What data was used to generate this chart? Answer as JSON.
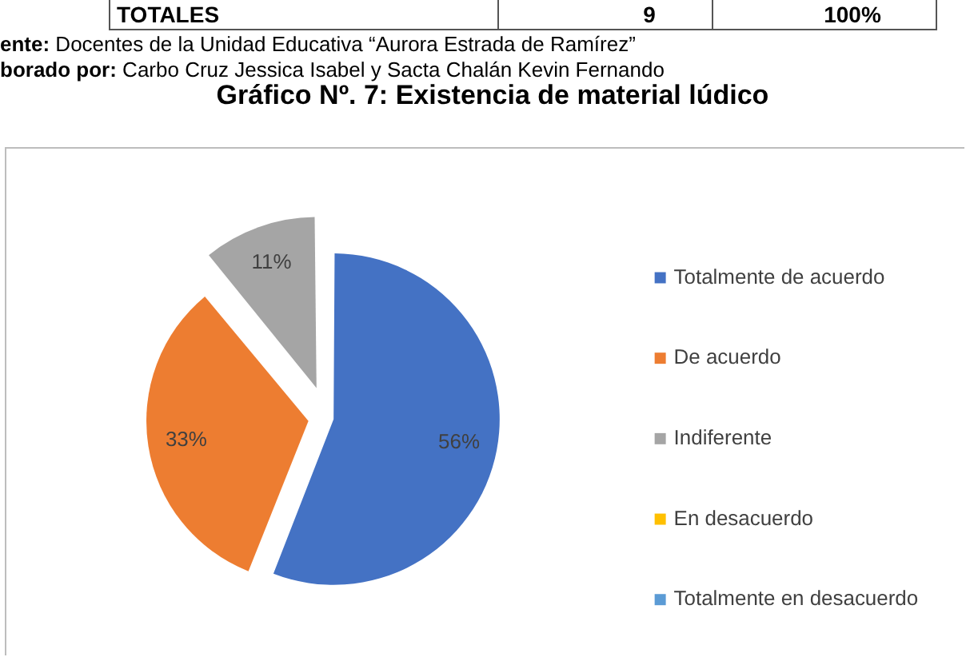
{
  "chart_data": {
    "type": "pie",
    "title": "Gráfico Nº. 7: Existencia de material lúdico",
    "categories": [
      "Totalmente de acuerdo",
      "De acuerdo",
      "Indiferente",
      "En desacuerdo",
      "Totalmente en desacuerdo"
    ],
    "values": [
      56,
      33,
      11,
      0,
      0
    ],
    "colors": [
      "#4472c4",
      "#ed7d31",
      "#a5a5a5",
      "#ffc000",
      "#5b9bd5"
    ],
    "value_labels": [
      "56%",
      "33%",
      "11%",
      null,
      null
    ],
    "legend": "right",
    "annotations": [
      "TOTALES",
      "9",
      "100%",
      "ente: Docentes de la Unidad Educativa “Aurora Estrada de Ramírez”",
      "borado por: Carbo Cruz Jessica Isabel y Sacta Chalán Kevin Fernando"
    ]
  }
}
